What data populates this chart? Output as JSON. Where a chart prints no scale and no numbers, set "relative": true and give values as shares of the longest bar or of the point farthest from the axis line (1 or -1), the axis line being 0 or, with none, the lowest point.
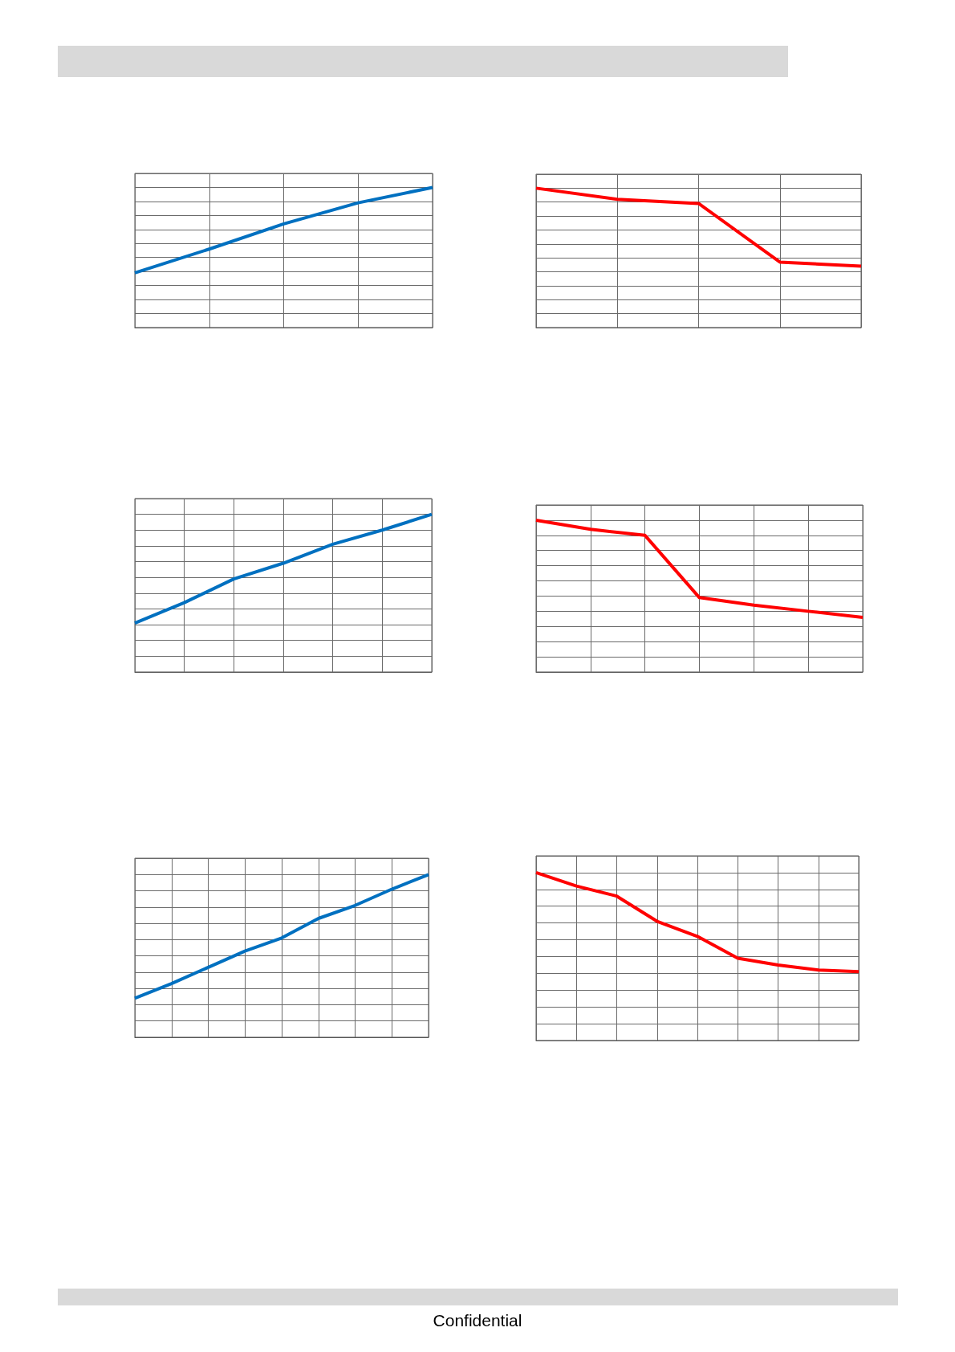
{
  "chart_data": [
    {
      "type": "line",
      "categories": [
        null,
        null,
        null,
        null,
        null
      ],
      "values": [
        0.39,
        0.56,
        0.74,
        0.89,
        1
      ],
      "color": "#0070c0",
      "relative": true,
      "grid": true
    },
    {
      "type": "line",
      "categories": [
        null,
        null,
        null,
        null,
        null
      ],
      "values": [
        1,
        0.92,
        0.89,
        0.47,
        0.44
      ],
      "color": "#ff0000",
      "relative": true,
      "grid": true
    },
    {
      "type": "line",
      "categories": [
        null,
        null,
        null,
        null,
        null,
        null,
        null
      ],
      "values": [
        0.31,
        0.44,
        0.59,
        0.69,
        0.81,
        0.9,
        1
      ],
      "color": "#0070c0",
      "relative": true,
      "grid": true
    },
    {
      "type": "line",
      "categories": [
        null,
        null,
        null,
        null,
        null,
        null,
        null
      ],
      "values": [
        1,
        0.94,
        0.9,
        0.49,
        0.44,
        0.4,
        0.36
      ],
      "color": "#ff0000",
      "relative": true,
      "grid": true
    },
    {
      "type": "line",
      "categories": [
        null,
        null,
        null,
        null,
        null,
        null,
        null,
        null,
        null
      ],
      "values": [
        0.24,
        0.33,
        0.43,
        0.53,
        0.61,
        0.73,
        0.81,
        0.91,
        1
      ],
      "color": "#0070c0",
      "relative": true,
      "grid": true
    },
    {
      "type": "line",
      "categories": [
        null,
        null,
        null,
        null,
        null,
        null,
        null,
        null,
        null
      ],
      "values": [
        1,
        0.92,
        0.86,
        0.71,
        0.62,
        0.49,
        0.45,
        0.42,
        0.41
      ],
      "color": "#ff0000",
      "relative": true,
      "grid": true,
      "annotations": [
        "Confidential"
      ]
    }
  ]
}
